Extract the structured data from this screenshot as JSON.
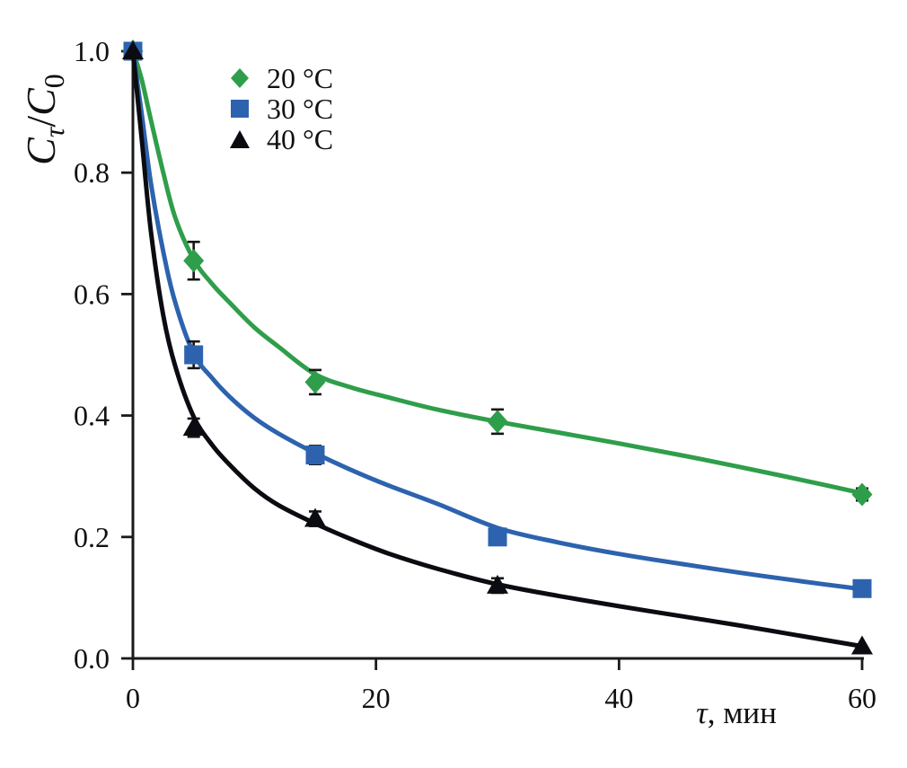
{
  "chart_data": {
    "type": "scatter",
    "title": "",
    "xlabel": "τ, мин",
    "xlabel_parts": {
      "tau": "τ",
      "rest": ", мин"
    },
    "ylabel": "Cτ/C0",
    "ylabel_parts": {
      "c1": "C",
      "sub1": "τ",
      "slash": "/",
      "c2": "C",
      "sub2": "0"
    },
    "xlim": [
      0,
      60
    ],
    "ylim": [
      0.0,
      1.0
    ],
    "x_ticks": {
      "values": [
        0,
        20,
        40,
        60
      ],
      "labels": [
        "0",
        "20",
        "40",
        "60"
      ]
    },
    "y_ticks": {
      "values": [
        0.0,
        0.2,
        0.4,
        0.6,
        0.8,
        1.0
      ],
      "labels": [
        "0.0",
        "0.2",
        "0.4",
        "0.6",
        "0.8",
        "1.0"
      ]
    },
    "grid": false,
    "legend_position": "upper-left-inside",
    "axis_color": "#1a1a1a",
    "text_color": "#111111",
    "error_bar_color": "#151515",
    "series": [
      {
        "name": "20 °C",
        "marker": "diamond",
        "color": "#2f9e4a",
        "x": [
          0,
          5,
          15,
          30,
          60
        ],
        "y": [
          1.0,
          0.655,
          0.455,
          0.39,
          0.27
        ],
        "yerr": [
          0,
          0.031,
          0.02,
          0.02,
          0.01
        ],
        "fit_x": [
          0,
          0.7,
          1.5,
          2.5,
          3.5,
          5,
          6.5,
          8,
          10,
          12,
          15,
          18,
          21,
          25,
          30,
          35,
          40,
          45,
          50,
          55,
          60
        ],
        "fit_y": [
          1.0,
          0.955,
          0.885,
          0.8,
          0.725,
          0.657,
          0.617,
          0.585,
          0.545,
          0.513,
          0.468,
          0.446,
          0.43,
          0.41,
          0.39,
          0.372,
          0.354,
          0.335,
          0.315,
          0.294,
          0.272
        ]
      },
      {
        "name": "30 °C",
        "marker": "square",
        "color": "#2d63ae",
        "x": [
          0,
          5,
          15,
          30,
          60
        ],
        "y": [
          1.0,
          0.5,
          0.335,
          0.2,
          0.115
        ],
        "yerr": [
          0,
          0.022,
          0.015,
          0,
          0
        ],
        "fit_x": [
          0,
          0.7,
          1.5,
          2.5,
          3.5,
          5,
          6.5,
          8,
          10,
          12,
          15,
          18,
          21,
          25,
          30,
          35,
          40,
          45,
          50,
          55,
          60
        ],
        "fit_y": [
          1.0,
          0.9,
          0.78,
          0.67,
          0.585,
          0.502,
          0.462,
          0.43,
          0.396,
          0.37,
          0.338,
          0.31,
          0.285,
          0.255,
          0.215,
          0.191,
          0.172,
          0.156,
          0.141,
          0.127,
          0.114
        ]
      },
      {
        "name": "40 °C",
        "marker": "triangle",
        "color": "#0b0b12",
        "x": [
          0,
          5,
          15,
          30,
          60
        ],
        "y": [
          1.0,
          0.38,
          0.23,
          0.12,
          0.02
        ],
        "yerr": [
          0,
          0.015,
          0.012,
          0.012,
          0
        ],
        "fit_x": [
          0,
          0.7,
          1.5,
          2.5,
          3.5,
          5,
          6.5,
          8,
          10,
          12,
          15,
          18,
          21,
          25,
          30,
          35,
          40,
          45,
          50,
          55,
          60
        ],
        "fit_y": [
          1.0,
          0.86,
          0.7,
          0.565,
          0.48,
          0.398,
          0.352,
          0.318,
          0.28,
          0.252,
          0.222,
          0.196,
          0.173,
          0.148,
          0.122,
          0.103,
          0.086,
          0.07,
          0.054,
          0.037,
          0.02
        ]
      }
    ]
  }
}
